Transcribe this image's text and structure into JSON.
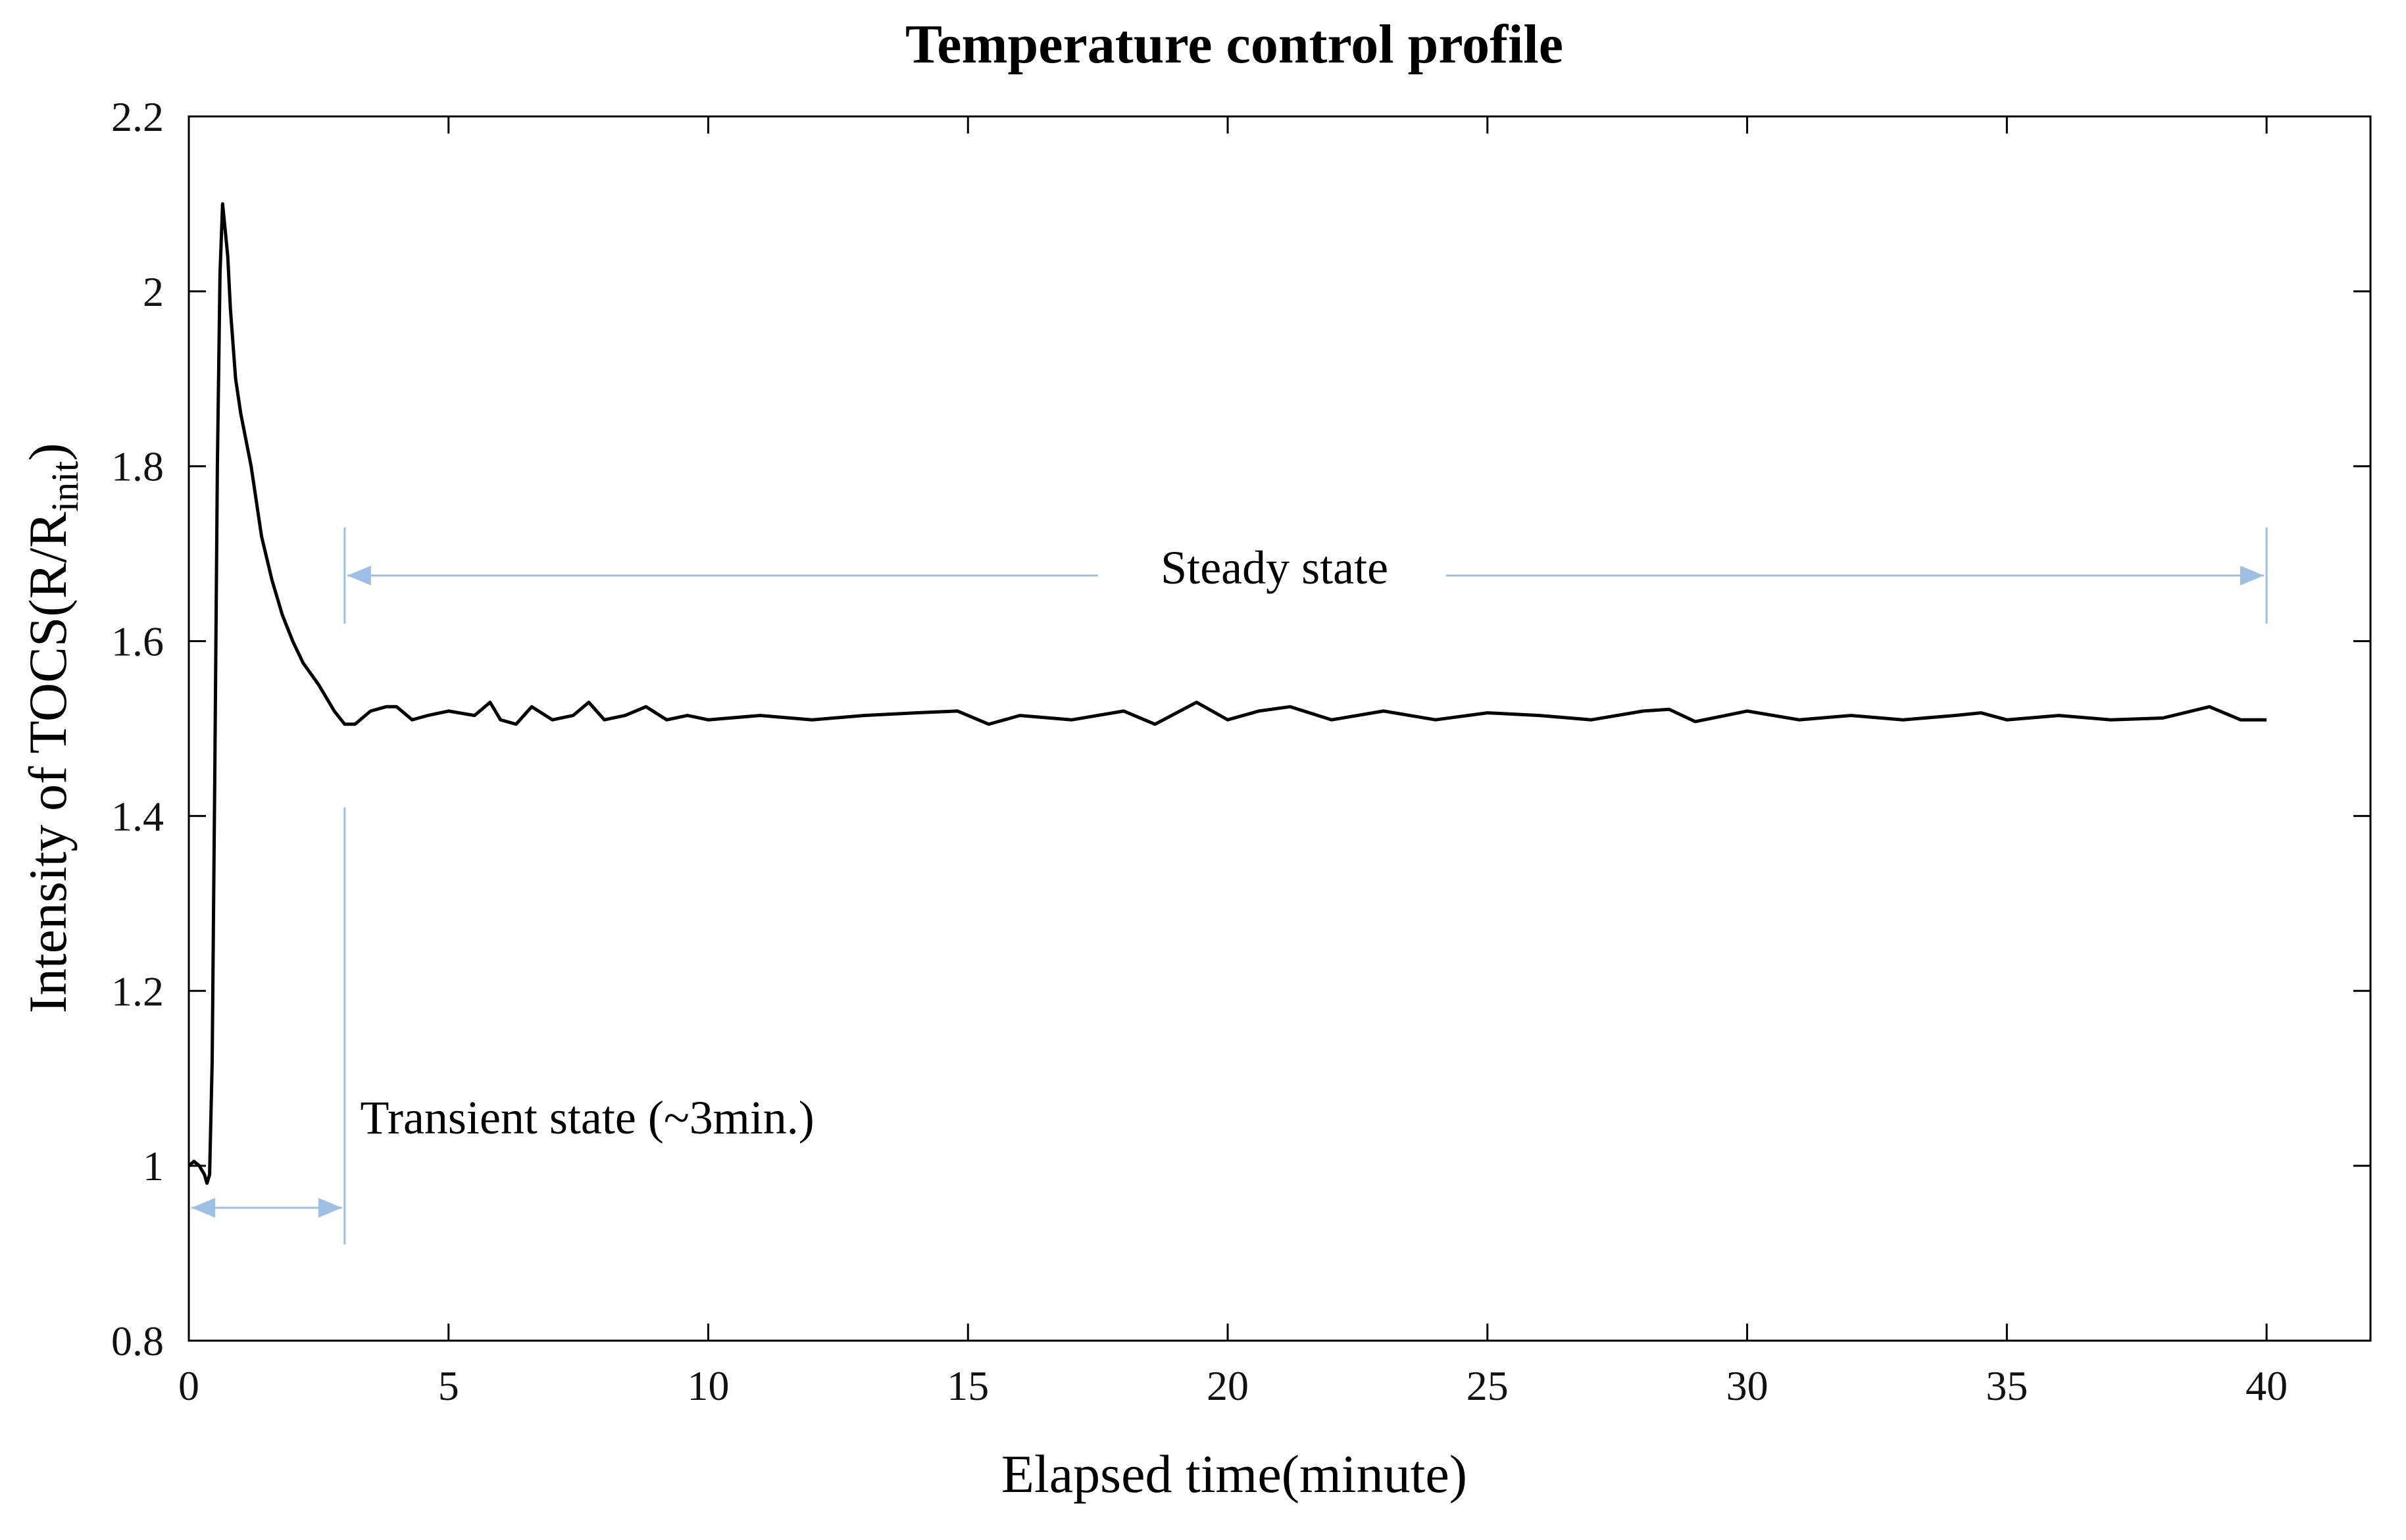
{
  "chart_data": {
    "type": "line",
    "title": "Temperature control profile",
    "xlabel": "Elapsed time(minute)",
    "ylabel": "Intensity of TOCS(R/R",
    "ylabel_subscript": "init",
    "ylabel_suffix": ")",
    "xlim": [
      0,
      42
    ],
    "ylim": [
      0.8,
      2.2
    ],
    "x_ticks": [
      0,
      5,
      10,
      15,
      20,
      25,
      30,
      35,
      40
    ],
    "x_tick_labels": [
      "0",
      "5",
      "10",
      "15",
      "20",
      "25",
      "30",
      "35",
      "40"
    ],
    "y_ticks": [
      0.8,
      1.0,
      1.2,
      1.4,
      1.6,
      1.8,
      2.0,
      2.2
    ],
    "y_tick_labels": [
      "0.8",
      "1",
      "1.2",
      "1.4",
      "1.6",
      "1.8",
      "2",
      "2.2"
    ],
    "grid": false,
    "series": [
      {
        "x": [
          0,
          0.1,
          0.2,
          0.3,
          0.35,
          0.4,
          0.45,
          0.5,
          0.55,
          0.6,
          0.65,
          0.7,
          0.75,
          0.8,
          0.9,
          1.0,
          1.2,
          1.4,
          1.6,
          1.8,
          2.0,
          2.2,
          2.5,
          2.8,
          3.0,
          3.2,
          3.5,
          3.8,
          4.0,
          4.3,
          4.6,
          5.0,
          5.5,
          5.8,
          6.0,
          6.3,
          6.6,
          7.0,
          7.4,
          7.7,
          8.0,
          8.4,
          8.8,
          9.2,
          9.6,
          10.0,
          11.0,
          12.0,
          13.0,
          14.0,
          14.8,
          15.4,
          16.0,
          17.0,
          18.0,
          18.6,
          19.4,
          20.0,
          20.6,
          21.2,
          22.0,
          23.0,
          24.0,
          25.0,
          26.0,
          27.0,
          28.0,
          28.5,
          29.0,
          30.0,
          31.0,
          32.0,
          33.0,
          34.0,
          34.5,
          35.0,
          36.0,
          37.0,
          38.0,
          38.9,
          39.5,
          40.0
        ],
        "y": [
          1.0,
          1.005,
          1.0,
          0.99,
          0.98,
          0.99,
          1.12,
          1.45,
          1.8,
          2.02,
          2.1,
          2.07,
          2.04,
          1.98,
          1.9,
          1.86,
          1.8,
          1.72,
          1.67,
          1.63,
          1.6,
          1.575,
          1.55,
          1.52,
          1.505,
          1.505,
          1.52,
          1.525,
          1.525,
          1.51,
          1.515,
          1.52,
          1.515,
          1.53,
          1.51,
          1.505,
          1.525,
          1.51,
          1.515,
          1.53,
          1.51,
          1.515,
          1.525,
          1.51,
          1.515,
          1.51,
          1.515,
          1.51,
          1.515,
          1.518,
          1.52,
          1.505,
          1.515,
          1.51,
          1.52,
          1.505,
          1.53,
          1.51,
          1.52,
          1.525,
          1.51,
          1.52,
          1.51,
          1.518,
          1.515,
          1.51,
          1.52,
          1.522,
          1.508,
          1.52,
          1.51,
          1.515,
          1.51,
          1.515,
          1.518,
          1.51,
          1.515,
          1.51,
          1.512,
          1.525,
          1.51,
          1.51
        ]
      }
    ],
    "annotations": [
      {
        "label": "Steady state",
        "x_range": [
          3,
          40
        ],
        "y": 1.675
      },
      {
        "label": "Transient state (~3min.)",
        "x_range": [
          0,
          3
        ],
        "y": 0.952
      }
    ],
    "annotation_color": "#9dbfe4"
  }
}
